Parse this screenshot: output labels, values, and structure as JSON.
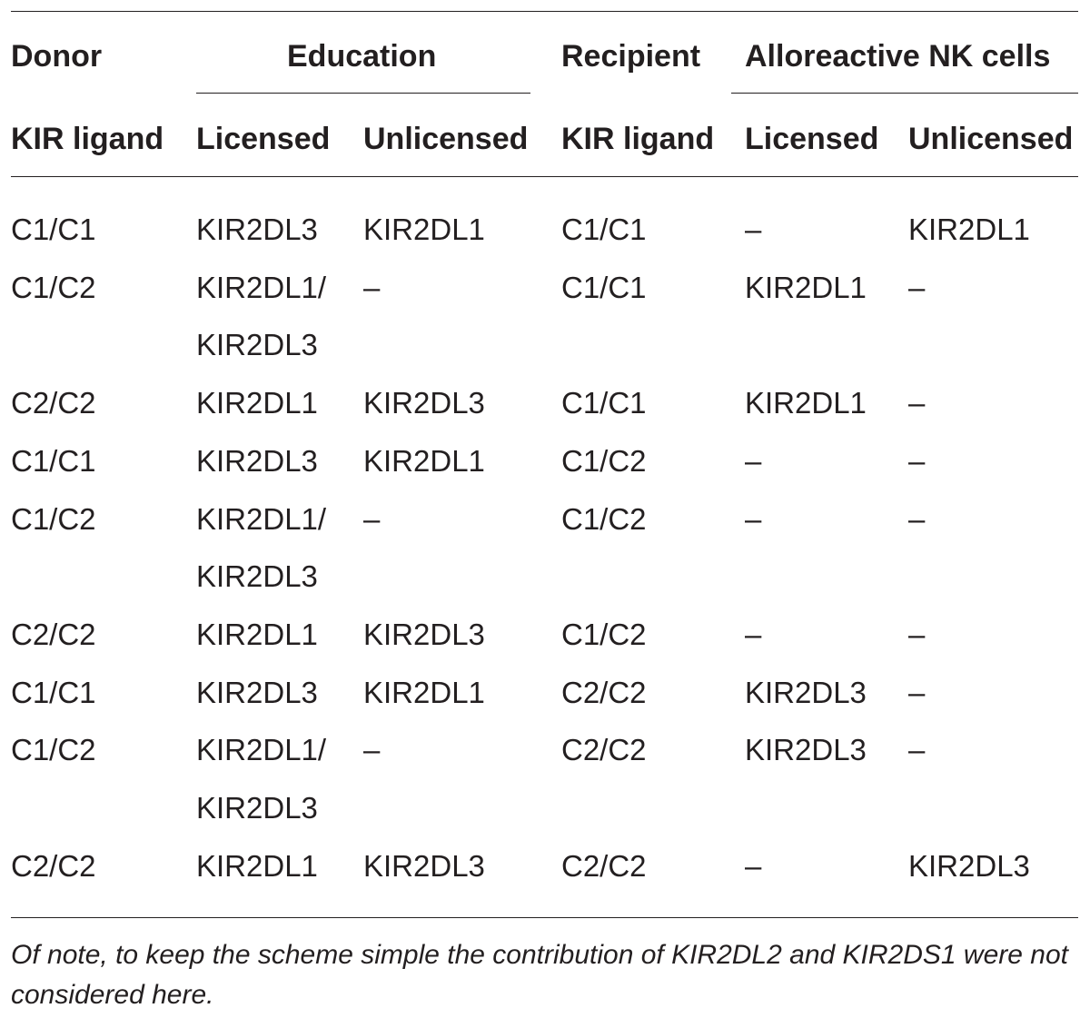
{
  "header": {
    "top": {
      "donor": "Donor",
      "education": "Education",
      "recipient": "Recipient",
      "alloreactive": "Alloreactive NK cells"
    },
    "sub": {
      "donor_kir_ligand": "KIR ligand",
      "edu_licensed": "Licensed",
      "edu_unlicensed": "Unlicensed",
      "recipient_kir_ligand": "KIR ligand",
      "allo_licensed": "Licensed",
      "allo_unlicensed": "Unlicensed"
    }
  },
  "rows": [
    {
      "donor": "C1/C1",
      "licensed": [
        "KIR2DL3"
      ],
      "unlicensed": "KIR2DL1",
      "recipient": "C1/C1",
      "allo_licensed": "–",
      "allo_unlicensed": "KIR2DL1"
    },
    {
      "donor": "C1/C2",
      "licensed": [
        "KIR2DL1/",
        "KIR2DL3"
      ],
      "unlicensed": "–",
      "recipient": "C1/C1",
      "allo_licensed": "KIR2DL1",
      "allo_unlicensed": "–"
    },
    {
      "donor": "C2/C2",
      "licensed": [
        "KIR2DL1"
      ],
      "unlicensed": "KIR2DL3",
      "recipient": "C1/C1",
      "allo_licensed": "KIR2DL1",
      "allo_unlicensed": "–"
    },
    {
      "donor": "C1/C1",
      "licensed": [
        "KIR2DL3"
      ],
      "unlicensed": "KIR2DL1",
      "recipient": "C1/C2",
      "allo_licensed": "–",
      "allo_unlicensed": "–"
    },
    {
      "donor": "C1/C2",
      "licensed": [
        "KIR2DL1/",
        "KIR2DL3"
      ],
      "unlicensed": "–",
      "recipient": "C1/C2",
      "allo_licensed": "–",
      "allo_unlicensed": "–"
    },
    {
      "donor": "C2/C2",
      "licensed": [
        "KIR2DL1"
      ],
      "unlicensed": "KIR2DL3",
      "recipient": "C1/C2",
      "allo_licensed": "–",
      "allo_unlicensed": "–"
    },
    {
      "donor": "C1/C1",
      "licensed": [
        "KIR2DL3"
      ],
      "unlicensed": "KIR2DL1",
      "recipient": "C2/C2",
      "allo_licensed": "KIR2DL3",
      "allo_unlicensed": "–"
    },
    {
      "donor": "C1/C2",
      "licensed": [
        "KIR2DL1/",
        "KIR2DL3"
      ],
      "unlicensed": "–",
      "recipient": "C2/C2",
      "allo_licensed": "KIR2DL3",
      "allo_unlicensed": "–"
    },
    {
      "donor": "C2/C2",
      "licensed": [
        "KIR2DL1"
      ],
      "unlicensed": "KIR2DL3",
      "recipient": "C2/C2",
      "allo_licensed": "–",
      "allo_unlicensed": "KIR2DL3"
    }
  ],
  "footnote": "Of note, to keep the scheme simple the contribution of KIR2DL2 and KIR2DS1 were not considered here."
}
